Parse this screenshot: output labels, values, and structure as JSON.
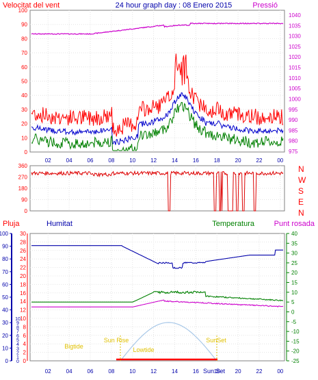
{
  "header": {
    "left": "Velocitat del vent",
    "center": "24 hour graph day : 08 Enero 2015",
    "right": "Pressió"
  },
  "wind_chart": {
    "y_ticks": [
      "0",
      "10",
      "20",
      "30",
      "40",
      "50",
      "60",
      "70",
      "80",
      "90",
      "100"
    ],
    "pressure_ticks": [
      "975",
      "980",
      "985",
      "990",
      "995",
      "1000",
      "1005",
      "1010",
      "1015",
      "1020",
      "1025",
      "1030",
      "1035",
      "1040"
    ],
    "x_ticks": [
      "02",
      "04",
      "06",
      "08",
      "10",
      "12",
      "14",
      "16",
      "18",
      "20",
      "22",
      "00"
    ]
  },
  "dir_chart": {
    "y_ticks": [
      "0",
      "90",
      "180",
      "270",
      "360"
    ],
    "compass": [
      "N",
      "W",
      "S",
      "E",
      "N"
    ],
    "x_ticks": [
      "02",
      "04",
      "06",
      "08",
      "10",
      "12",
      "14",
      "16",
      "18",
      "20",
      "22",
      "00"
    ]
  },
  "bottom_header": {
    "rain": "Pluja",
    "humidity": "Humitat",
    "temperature": "Temperatura",
    "dewpoint": "Punt rosada"
  },
  "bottom_chart": {
    "hum_ticks": [
      "0",
      "10",
      "20",
      "30",
      "40",
      "50",
      "60",
      "70",
      "80",
      "90",
      "100"
    ],
    "rain_ticks": [
      "0",
      "2",
      "4",
      "6",
      "8",
      "10",
      "12",
      "14",
      "16",
      "18",
      "20",
      "22",
      "24",
      "26",
      "28",
      "30"
    ],
    "small_ticks": [
      "0",
      "1",
      "2",
      "3",
      "4",
      "5",
      "6",
      "7",
      "8",
      "9",
      "10"
    ],
    "temp_ticks": [
      "-25",
      "-20",
      "-15",
      "-10",
      "-5",
      "0",
      "5",
      "10",
      "15",
      "20",
      "25",
      "30",
      "35",
      "40"
    ],
    "x_ticks": [
      "02",
      "04",
      "06",
      "08",
      "10",
      "12",
      "14",
      "16",
      "18",
      "20",
      "22",
      "00"
    ],
    "sun_labels": {
      "bigtide": "Bigtide",
      "sunrise": "Sun Rise",
      "lowtide": "Lowtide",
      "sunset": "SunSet",
      "sun_set_bottom": "Sun Set"
    }
  },
  "colors": {
    "wind_gust": "#ff0000",
    "wind_avg": "#0000cc",
    "wind_low": "#008000",
    "pressure": "#cc00cc",
    "humidity": "#0000aa",
    "temperature": "#008000",
    "dewpoint": "#cc00cc",
    "rain": "#ff0000",
    "sun_arc": "#a8c8e8"
  }
}
